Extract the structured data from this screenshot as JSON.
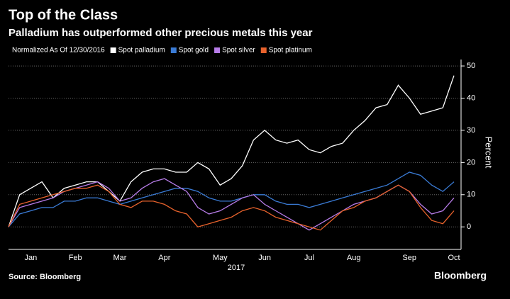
{
  "chart_data": {
    "type": "line",
    "title": "Top of the Class",
    "subtitle": "Palladium has outperformed other precious metals this year",
    "legend_note": "Normalized As Of 12/30/2016",
    "xlabel": "2017",
    "ylabel": "Percent",
    "source": "Source: Bloomberg",
    "logo": "Bloomberg",
    "categories": [
      null,
      null,
      "Jan",
      null,
      null,
      null,
      "Feb",
      null,
      null,
      null,
      "Mar",
      null,
      null,
      null,
      "Apr",
      null,
      null,
      null,
      null,
      "May",
      null,
      null,
      null,
      "Jun",
      null,
      null,
      null,
      "Jul",
      null,
      null,
      null,
      "Aug",
      null,
      null,
      null,
      null,
      "Sep",
      null,
      null,
      null,
      "Oct"
    ],
    "series": [
      {
        "name": "Spot palladium",
        "color": "#ffffff",
        "values": [
          0,
          10,
          12,
          14,
          9,
          12,
          13,
          14,
          14,
          11,
          8,
          14,
          17,
          18,
          18,
          17,
          17,
          20,
          18,
          13,
          15,
          19,
          27,
          30,
          27,
          26,
          27,
          24,
          23,
          25,
          26,
          30,
          33,
          37,
          38,
          44,
          40,
          35,
          36,
          37,
          47
        ]
      },
      {
        "name": "Spot gold",
        "color": "#3a7bd5",
        "values": [
          0,
          4,
          5,
          6,
          6,
          8,
          8,
          9,
          9,
          8,
          7,
          8,
          9,
          10,
          11,
          12,
          12,
          11,
          9,
          8,
          8,
          9,
          10,
          10,
          8,
          7,
          7,
          6,
          7,
          8,
          9,
          10,
          11,
          12,
          13,
          15,
          17,
          16,
          13,
          11,
          14
        ]
      },
      {
        "name": "Spot silver",
        "color": "#b77ce8",
        "values": [
          0,
          6,
          7,
          8,
          9,
          11,
          12,
          13,
          14,
          12,
          8,
          9,
          12,
          14,
          15,
          13,
          11,
          6,
          4,
          5,
          7,
          9,
          10,
          7,
          5,
          3,
          1,
          -1,
          1,
          3,
          5,
          7,
          8,
          9,
          11,
          13,
          11,
          7,
          4,
          5,
          9
        ]
      },
      {
        "name": "Spot platinum",
        "color": "#e8622c",
        "values": [
          0,
          7,
          8,
          9,
          10,
          11,
          12,
          12,
          13,
          11,
          7,
          6,
          8,
          8,
          7,
          5,
          4,
          0,
          1,
          2,
          3,
          5,
          6,
          5,
          3,
          2,
          1,
          0,
          -1,
          2,
          5,
          6,
          8,
          9,
          11,
          13,
          11,
          6,
          2,
          1,
          5
        ]
      }
    ],
    "ylim": [
      -7,
      52
    ],
    "yticks": [
      0,
      10,
      20,
      30,
      40,
      50
    ],
    "grid": true
  }
}
